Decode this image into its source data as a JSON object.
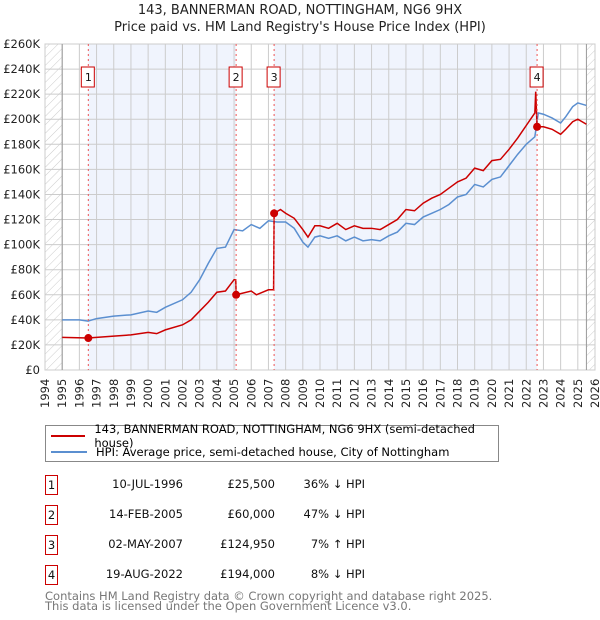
{
  "title": "143, BANNERMAN ROAD, NOTTINGHAM, NG6 9HX",
  "subtitle": "Price paid vs. HM Land Registry's House Price Index (HPI)",
  "chart_data": {
    "type": "line",
    "xlim": [
      1994,
      2026
    ],
    "ylim": [
      0,
      260000
    ],
    "x_ticks": [
      "1994",
      "1995",
      "1996",
      "1997",
      "1998",
      "1999",
      "2000",
      "2001",
      "2002",
      "2003",
      "2004",
      "2005",
      "2006",
      "2007",
      "2008",
      "2009",
      "2010",
      "2011",
      "2012",
      "2013",
      "2014",
      "2015",
      "2016",
      "2017",
      "2018",
      "2019",
      "2020",
      "2021",
      "2022",
      "2023",
      "2024",
      "2025",
      "2026"
    ],
    "y_ticks": [
      {
        "v": 0,
        "l": "£0"
      },
      {
        "v": 20000,
        "l": "£20K"
      },
      {
        "v": 40000,
        "l": "£40K"
      },
      {
        "v": 60000,
        "l": "£60K"
      },
      {
        "v": 80000,
        "l": "£80K"
      },
      {
        "v": 100000,
        "l": "£100K"
      },
      {
        "v": 120000,
        "l": "£120K"
      },
      {
        "v": 140000,
        "l": "£140K"
      },
      {
        "v": 160000,
        "l": "£160K"
      },
      {
        "v": 180000,
        "l": "£180K"
      },
      {
        "v": 200000,
        "l": "£200K"
      },
      {
        "v": 220000,
        "l": "£220K"
      },
      {
        "v": 240000,
        "l": "£240K"
      },
      {
        "v": 260000,
        "l": "£260K"
      }
    ],
    "grid": true,
    "data_range": [
      1995,
      2025.5
    ],
    "series": [
      {
        "name": "143, BANNERMAN ROAD, NOTTINGHAM, NG6 9HX (semi-detached house)",
        "color": "#cc0000",
        "x": [
          1995,
          1996.5,
          1997,
          1998,
          1999,
          2000,
          2000.5,
          2001,
          2002,
          2002.5,
          2003,
          2003.5,
          2004,
          2004.5,
          2005,
          2005.1,
          2005.12,
          2006,
          2006.3,
          2007,
          2007.3,
          2007.33,
          2007.7,
          2008,
          2008.5,
          2009,
          2009.3,
          2009.7,
          2010,
          2010.5,
          2011,
          2011.5,
          2012,
          2012.5,
          2013,
          2013.5,
          2014,
          2014.5,
          2015,
          2015.5,
          2016,
          2016.5,
          2017,
          2017.5,
          2018,
          2018.5,
          2019,
          2019.5,
          2020,
          2020.5,
          2021,
          2021.5,
          2022,
          2022.5,
          2022.55,
          2022.63,
          2023,
          2023.5,
          2024,
          2024.3,
          2024.7,
          2025,
          2025.5
        ],
        "y": [
          26,
          25.5,
          26,
          27,
          28,
          30,
          29,
          32,
          36,
          40,
          47,
          54,
          62,
          63,
          72,
          72,
          60,
          63,
          60,
          64,
          64,
          124.95,
          128,
          125,
          121,
          112,
          106,
          115,
          115,
          113,
          117,
          112,
          115,
          113,
          113,
          112,
          116,
          120,
          128,
          127,
          133,
          137,
          140,
          145,
          150,
          153,
          161,
          159,
          167,
          168,
          176,
          185,
          195,
          205,
          222,
          194,
          194,
          192,
          188,
          192,
          198,
          200,
          196
        ]
      },
      {
        "name": "HPI: Average price, semi-detached house, City of Nottingham",
        "color": "#5b8fd0",
        "x": [
          1995,
          1996,
          1996.5,
          1997,
          1998,
          1999,
          2000,
          2000.5,
          2001,
          2002,
          2002.5,
          2003,
          2003.5,
          2004,
          2004.5,
          2005,
          2005.5,
          2006,
          2006.5,
          2007,
          2007.5,
          2008,
          2008.5,
          2009,
          2009.3,
          2009.7,
          2010,
          2010.5,
          2011,
          2011.5,
          2012,
          2012.5,
          2013,
          2013.5,
          2014,
          2014.5,
          2015,
          2015.5,
          2016,
          2016.5,
          2017,
          2017.5,
          2018,
          2018.5,
          2019,
          2019.5,
          2020,
          2020.5,
          2021,
          2021.5,
          2022,
          2022.5,
          2022.7,
          2023,
          2023.5,
          2024,
          2024.3,
          2024.7,
          2025,
          2025.5
        ],
        "y": [
          40,
          40,
          39,
          41,
          43,
          44,
          47,
          46,
          50,
          56,
          62,
          72,
          85,
          97,
          98,
          112,
          111,
          116,
          113,
          119,
          118,
          118,
          113,
          102,
          98,
          106,
          107,
          105,
          107,
          103,
          106,
          103,
          104,
          103,
          107,
          110,
          117,
          116,
          122,
          125,
          128,
          132,
          138,
          140,
          148,
          146,
          152,
          154,
          163,
          172,
          180,
          186,
          205,
          204,
          201,
          197,
          202,
          210,
          213,
          211
        ]
      }
    ],
    "sales": [
      {
        "n": "1",
        "x": 1996.52,
        "y": 25.5
      },
      {
        "n": "2",
        "x": 2005.12,
        "y": 60
      },
      {
        "n": "3",
        "x": 2007.33,
        "y": 124.95
      },
      {
        "n": "4",
        "x": 2022.63,
        "y": 194
      }
    ]
  },
  "legend": [
    "143, BANNERMAN ROAD, NOTTINGHAM, NG6 9HX (semi-detached house)",
    "HPI: Average price, semi-detached house, City of Nottingham"
  ],
  "table": [
    {
      "n": "1",
      "date": "10-JUL-1996",
      "price": "£25,500",
      "hpi": "36% ↓ HPI"
    },
    {
      "n": "2",
      "date": "14-FEB-2005",
      "price": "£60,000",
      "hpi": "47% ↓ HPI"
    },
    {
      "n": "3",
      "date": "02-MAY-2007",
      "price": "£124,950",
      "hpi": "7% ↑ HPI"
    },
    {
      "n": "4",
      "date": "19-AUG-2022",
      "price": "£194,000",
      "hpi": "8% ↓ HPI"
    }
  ],
  "footer": [
    "Contains HM Land Registry data © Crown copyright and database right 2025.",
    "This data is licensed under the Open Government Licence v3.0."
  ]
}
